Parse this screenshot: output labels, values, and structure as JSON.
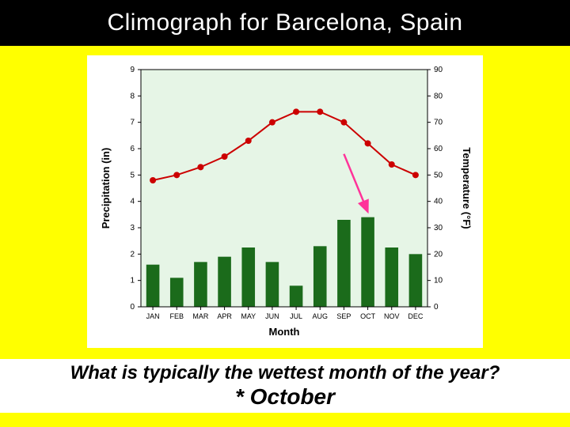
{
  "header": {
    "title": "Climograph for Barcelona, Spain"
  },
  "question": {
    "prompt": "What is typically the wettest month of the year?",
    "answer": "* October"
  },
  "chart": {
    "type": "climograph",
    "background_color": "#ffffff",
    "page_background": "#ffff00",
    "plot_fill": "#e6f5e6",
    "plot_border": "#000000",
    "tick_label_fontsize": 10,
    "axis_label_fontsize": 13,
    "axis_label_weight": "bold",
    "x": {
      "label": "Month",
      "categories": [
        "JAN",
        "FEB",
        "MAR",
        "APR",
        "MAY",
        "JUN",
        "JUL",
        "AUG",
        "SEP",
        "OCT",
        "NOV",
        "DEC"
      ]
    },
    "y_left": {
      "label": "Precipitation (in)",
      "min": 0,
      "max": 9,
      "step": 1,
      "color": "#000000"
    },
    "y_right": {
      "label": "Temperature (°F)",
      "min": 0,
      "max": 90,
      "step": 10,
      "color": "#000000"
    },
    "bars": {
      "color": "#1b6b1b",
      "width_ratio": 0.55,
      "values": [
        1.6,
        1.1,
        1.7,
        1.9,
        2.25,
        1.7,
        0.8,
        2.3,
        3.3,
        3.4,
        2.25,
        2.0
      ]
    },
    "line": {
      "color": "#cc0000",
      "marker_color": "#cc0000",
      "marker_size": 4,
      "width": 2,
      "values": [
        48,
        50,
        53,
        57,
        63,
        70,
        74,
        74,
        70,
        62,
        54,
        50
      ]
    },
    "arrow": {
      "color": "#ff3399",
      "from_month_index": 8,
      "from_y_in": 5.8,
      "to_month_index": 9,
      "to_y_in": 3.6
    }
  }
}
